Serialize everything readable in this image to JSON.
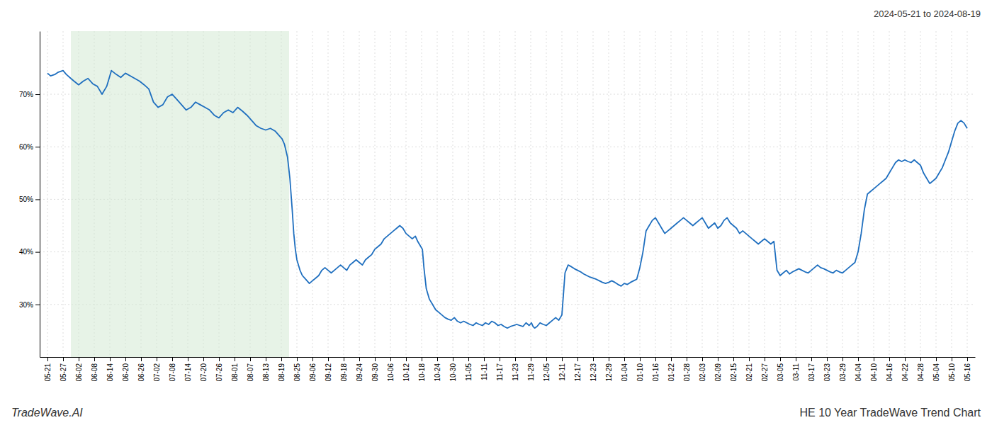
{
  "chart_data": {
    "type": "line",
    "title": "HE 10 Year TradeWave Trend Chart",
    "subtitle": "2024-05-21 to 2024-08-19",
    "annotations": [
      "TradeWave.AI"
    ],
    "grid": true,
    "xlim": [
      -0.5,
      59.5
    ],
    "xticks": [
      {
        "value": 0,
        "label": "05-21"
      },
      {
        "value": 1,
        "label": "05-27"
      },
      {
        "value": 2,
        "label": "06-02"
      },
      {
        "value": 3,
        "label": "06-08"
      },
      {
        "value": 4,
        "label": "06-14"
      },
      {
        "value": 5,
        "label": "06-20"
      },
      {
        "value": 6,
        "label": "06-26"
      },
      {
        "value": 7,
        "label": "07-02"
      },
      {
        "value": 8,
        "label": "07-08"
      },
      {
        "value": 9,
        "label": "07-14"
      },
      {
        "value": 10,
        "label": "07-20"
      },
      {
        "value": 11,
        "label": "07-26"
      },
      {
        "value": 12,
        "label": "08-01"
      },
      {
        "value": 13,
        "label": "08-07"
      },
      {
        "value": 14,
        "label": "08-13"
      },
      {
        "value": 15,
        "label": "08-19"
      },
      {
        "value": 16,
        "label": "08-25"
      },
      {
        "value": 17,
        "label": "09-06"
      },
      {
        "value": 18,
        "label": "09-12"
      },
      {
        "value": 19,
        "label": "09-18"
      },
      {
        "value": 20,
        "label": "09-24"
      },
      {
        "value": 21,
        "label": "09-30"
      },
      {
        "value": 22,
        "label": "10-06"
      },
      {
        "value": 23,
        "label": "10-12"
      },
      {
        "value": 24,
        "label": "10-18"
      },
      {
        "value": 25,
        "label": "10-24"
      },
      {
        "value": 26,
        "label": "10-30"
      },
      {
        "value": 27,
        "label": "11-05"
      },
      {
        "value": 28,
        "label": "11-11"
      },
      {
        "value": 29,
        "label": "11-17"
      },
      {
        "value": 30,
        "label": "11-23"
      },
      {
        "value": 31,
        "label": "11-29"
      },
      {
        "value": 32,
        "label": "12-05"
      },
      {
        "value": 33,
        "label": "12-11"
      },
      {
        "value": 34,
        "label": "12-17"
      },
      {
        "value": 35,
        "label": "12-23"
      },
      {
        "value": 36,
        "label": "12-29"
      },
      {
        "value": 37,
        "label": "01-04"
      },
      {
        "value": 38,
        "label": "01-10"
      },
      {
        "value": 39,
        "label": "01-16"
      },
      {
        "value": 40,
        "label": "01-22"
      },
      {
        "value": 41,
        "label": "01-28"
      },
      {
        "value": 42,
        "label": "02-03"
      },
      {
        "value": 43,
        "label": "02-09"
      },
      {
        "value": 44,
        "label": "02-15"
      },
      {
        "value": 45,
        "label": "02-21"
      },
      {
        "value": 46,
        "label": "02-27"
      },
      {
        "value": 47,
        "label": "03-05"
      },
      {
        "value": 48,
        "label": "03-11"
      },
      {
        "value": 49,
        "label": "03-17"
      },
      {
        "value": 50,
        "label": "03-23"
      },
      {
        "value": 51,
        "label": "03-29"
      },
      {
        "value": 52,
        "label": "04-04"
      },
      {
        "value": 53,
        "label": "04-10"
      },
      {
        "value": 54,
        "label": "04-16"
      },
      {
        "value": 55,
        "label": "04-22"
      },
      {
        "value": 56,
        "label": "04-28"
      },
      {
        "value": 57,
        "label": "05-04"
      },
      {
        "value": 58,
        "label": "05-10"
      },
      {
        "value": 59,
        "label": "05-16"
      }
    ],
    "ylim": [
      20,
      82
    ],
    "yticks": [
      {
        "value": 30,
        "label": "30%"
      },
      {
        "value": 40,
        "label": "40%"
      },
      {
        "value": 50,
        "label": "50%"
      },
      {
        "value": 60,
        "label": "60%"
      },
      {
        "value": 70,
        "label": "70%"
      }
    ],
    "spans": [
      {
        "x": [
          1.5,
          15.5
        ],
        "color": "#d4ead4"
      }
    ],
    "x": [
      0.0,
      0.2,
      0.5,
      0.7,
      1.0,
      1.2,
      1.5,
      1.7,
      2.0,
      2.3,
      2.6,
      2.9,
      3.2,
      3.5,
      3.8,
      4.1,
      4.4,
      4.7,
      5.0,
      5.3,
      5.6,
      5.9,
      6.2,
      6.5,
      6.8,
      7.1,
      7.4,
      7.7,
      8.0,
      8.3,
      8.6,
      8.9,
      9.2,
      9.5,
      9.8,
      10.1,
      10.4,
      10.7,
      11.0,
      11.3,
      11.6,
      11.9,
      12.2,
      12.5,
      12.8,
      13.1,
      13.4,
      13.7,
      14.0,
      14.3,
      14.6,
      14.75,
      14.9,
      15.05,
      15.2,
      15.4,
      15.55,
      15.7,
      15.8,
      15.9,
      16.0,
      16.1,
      16.2,
      16.35,
      16.5,
      16.65,
      16.8,
      17.0,
      17.2,
      17.4,
      17.6,
      17.8,
      18.0,
      18.2,
      18.4,
      18.6,
      18.8,
      19.0,
      19.2,
      19.4,
      19.6,
      19.8,
      20.0,
      20.2,
      20.4,
      20.6,
      20.8,
      21.0,
      21.2,
      21.4,
      21.6,
      21.8,
      22.0,
      22.2,
      22.4,
      22.6,
      22.8,
      23.0,
      23.2,
      23.4,
      23.6,
      23.75,
      23.85,
      23.95,
      24.05,
      24.15,
      24.3,
      24.5,
      24.7,
      24.9,
      25.1,
      25.3,
      25.5,
      25.7,
      25.9,
      26.1,
      26.3,
      26.5,
      26.7,
      26.9,
      27.1,
      27.3,
      27.5,
      27.7,
      27.9,
      28.1,
      28.3,
      28.5,
      28.7,
      28.9,
      29.1,
      29.3,
      29.5,
      29.7,
      29.9,
      30.1,
      30.3,
      30.5,
      30.7,
      30.9,
      31.05,
      31.15,
      31.25,
      31.4,
      31.6,
      31.8,
      32.0,
      32.2,
      32.4,
      32.6,
      32.8,
      33.0,
      33.2,
      33.4,
      33.6,
      33.8,
      34.0,
      34.2,
      34.4,
      34.6,
      34.8,
      35.0,
      35.2,
      35.4,
      35.6,
      35.8,
      36.0,
      36.2,
      36.4,
      36.6,
      36.8,
      37.0,
      37.2,
      37.4,
      37.6,
      37.8,
      38.0,
      38.2,
      38.4,
      38.6,
      38.8,
      39.0,
      39.2,
      39.4,
      39.6,
      39.8,
      40.0,
      40.2,
      40.4,
      40.6,
      40.8,
      41.0,
      41.2,
      41.4,
      41.6,
      41.8,
      42.0,
      42.2,
      42.4,
      42.6,
      42.8,
      43.0,
      43.2,
      43.4,
      43.6,
      43.8,
      44.0,
      44.2,
      44.4,
      44.6,
      44.8,
      45.0,
      45.2,
      45.4,
      45.6,
      45.8,
      46.0,
      46.2,
      46.4,
      46.6,
      46.8,
      47.0,
      47.2,
      47.4,
      47.6,
      47.8,
      48.0,
      48.2,
      48.4,
      48.6,
      48.8,
      49.0,
      49.2,
      49.4,
      49.6,
      49.8,
      50.0,
      50.2,
      50.4,
      50.6,
      50.8,
      51.0,
      51.2,
      51.4,
      51.6,
      51.8,
      52.0,
      52.2,
      52.4,
      52.6,
      52.8,
      53.0,
      53.2,
      53.4,
      53.6,
      53.8,
      54.0,
      54.2,
      54.4,
      54.6,
      54.8,
      55.0,
      55.2,
      55.4,
      55.6,
      55.8,
      56.0,
      56.2,
      56.4,
      56.6,
      56.8,
      57.0,
      57.2,
      57.4,
      57.6,
      57.8,
      58.0,
      58.2,
      58.4,
      58.6,
      58.8,
      59.0
    ],
    "series": [
      {
        "color": "#1f6fbf",
        "values": [
          74.0,
          73.5,
          73.8,
          74.2,
          74.5,
          73.8,
          73.0,
          72.5,
          71.8,
          72.5,
          73.0,
          72.0,
          71.5,
          70.0,
          71.5,
          74.5,
          73.8,
          73.2,
          74.0,
          73.5,
          73.0,
          72.5,
          71.8,
          71.0,
          68.5,
          67.5,
          68.0,
          69.5,
          70.0,
          69.0,
          68.0,
          67.0,
          67.5,
          68.5,
          68.0,
          67.5,
          67.0,
          66.0,
          65.5,
          66.5,
          67.0,
          66.5,
          67.5,
          66.8,
          66.0,
          65.0,
          64.0,
          63.5,
          63.2,
          63.5,
          63.0,
          62.5,
          62.0,
          61.5,
          60.5,
          58.0,
          54.0,
          48.0,
          43.5,
          40.5,
          38.5,
          37.5,
          36.5,
          35.5,
          35.0,
          34.5,
          34.0,
          34.5,
          35.0,
          35.5,
          36.5,
          37.0,
          36.5,
          36.0,
          36.5,
          37.0,
          37.5,
          37.0,
          36.5,
          37.5,
          38.0,
          38.5,
          38.0,
          37.5,
          38.5,
          39.0,
          39.5,
          40.5,
          41.0,
          41.5,
          42.5,
          43.0,
          43.5,
          44.0,
          44.5,
          45.0,
          44.5,
          43.5,
          43.0,
          42.5,
          43.0,
          42.0,
          41.5,
          41.0,
          40.5,
          37.0,
          33.0,
          31.0,
          30.0,
          29.0,
          28.5,
          28.0,
          27.5,
          27.2,
          27.0,
          27.5,
          26.8,
          26.5,
          26.8,
          26.5,
          26.2,
          26.0,
          26.5,
          26.2,
          26.0,
          26.5,
          26.2,
          26.8,
          26.5,
          26.0,
          26.2,
          25.8,
          25.5,
          25.8,
          26.0,
          26.2,
          26.0,
          25.8,
          26.5,
          26.0,
          26.5,
          25.8,
          25.5,
          25.8,
          26.5,
          26.2,
          26.0,
          26.5,
          27.0,
          27.5,
          27.0,
          28.0,
          36.0,
          37.5,
          37.2,
          36.8,
          36.5,
          36.2,
          35.8,
          35.5,
          35.2,
          35.0,
          34.8,
          34.5,
          34.2,
          34.0,
          34.2,
          34.5,
          34.2,
          33.8,
          33.5,
          34.0,
          33.8,
          34.2,
          34.5,
          34.8,
          37.0,
          40.0,
          44.0,
          45.0,
          46.0,
          46.5,
          45.5,
          44.5,
          43.5,
          44.0,
          44.5,
          45.0,
          45.5,
          46.0,
          46.5,
          46.0,
          45.5,
          45.0,
          45.5,
          46.0,
          46.5,
          45.5,
          44.5,
          45.0,
          45.5,
          44.5,
          45.0,
          46.0,
          46.5,
          45.5,
          45.0,
          44.5,
          43.5,
          44.0,
          43.5,
          43.0,
          42.5,
          42.0,
          41.5,
          42.0,
          42.5,
          42.0,
          41.5,
          42.0,
          36.5,
          35.5,
          36.0,
          36.5,
          35.8,
          36.2,
          36.5,
          36.8,
          36.5,
          36.2,
          36.0,
          36.5,
          37.0,
          37.5,
          37.0,
          36.8,
          36.5,
          36.2,
          36.0,
          36.5,
          36.2,
          36.0,
          36.5,
          37.0,
          37.5,
          38.0,
          40.0,
          43.5,
          48.0,
          51.0,
          51.5,
          52.0,
          52.5,
          53.0,
          53.5,
          54.0,
          55.0,
          56.0,
          57.0,
          57.5,
          57.2,
          57.5,
          57.2,
          57.0,
          57.5,
          57.0,
          56.5,
          55.0,
          54.0,
          53.0,
          53.5,
          54.0,
          55.0,
          56.0,
          57.5,
          59.0,
          61.0,
          63.0,
          64.5,
          65.0,
          64.5,
          63.5
        ]
      }
    ]
  }
}
